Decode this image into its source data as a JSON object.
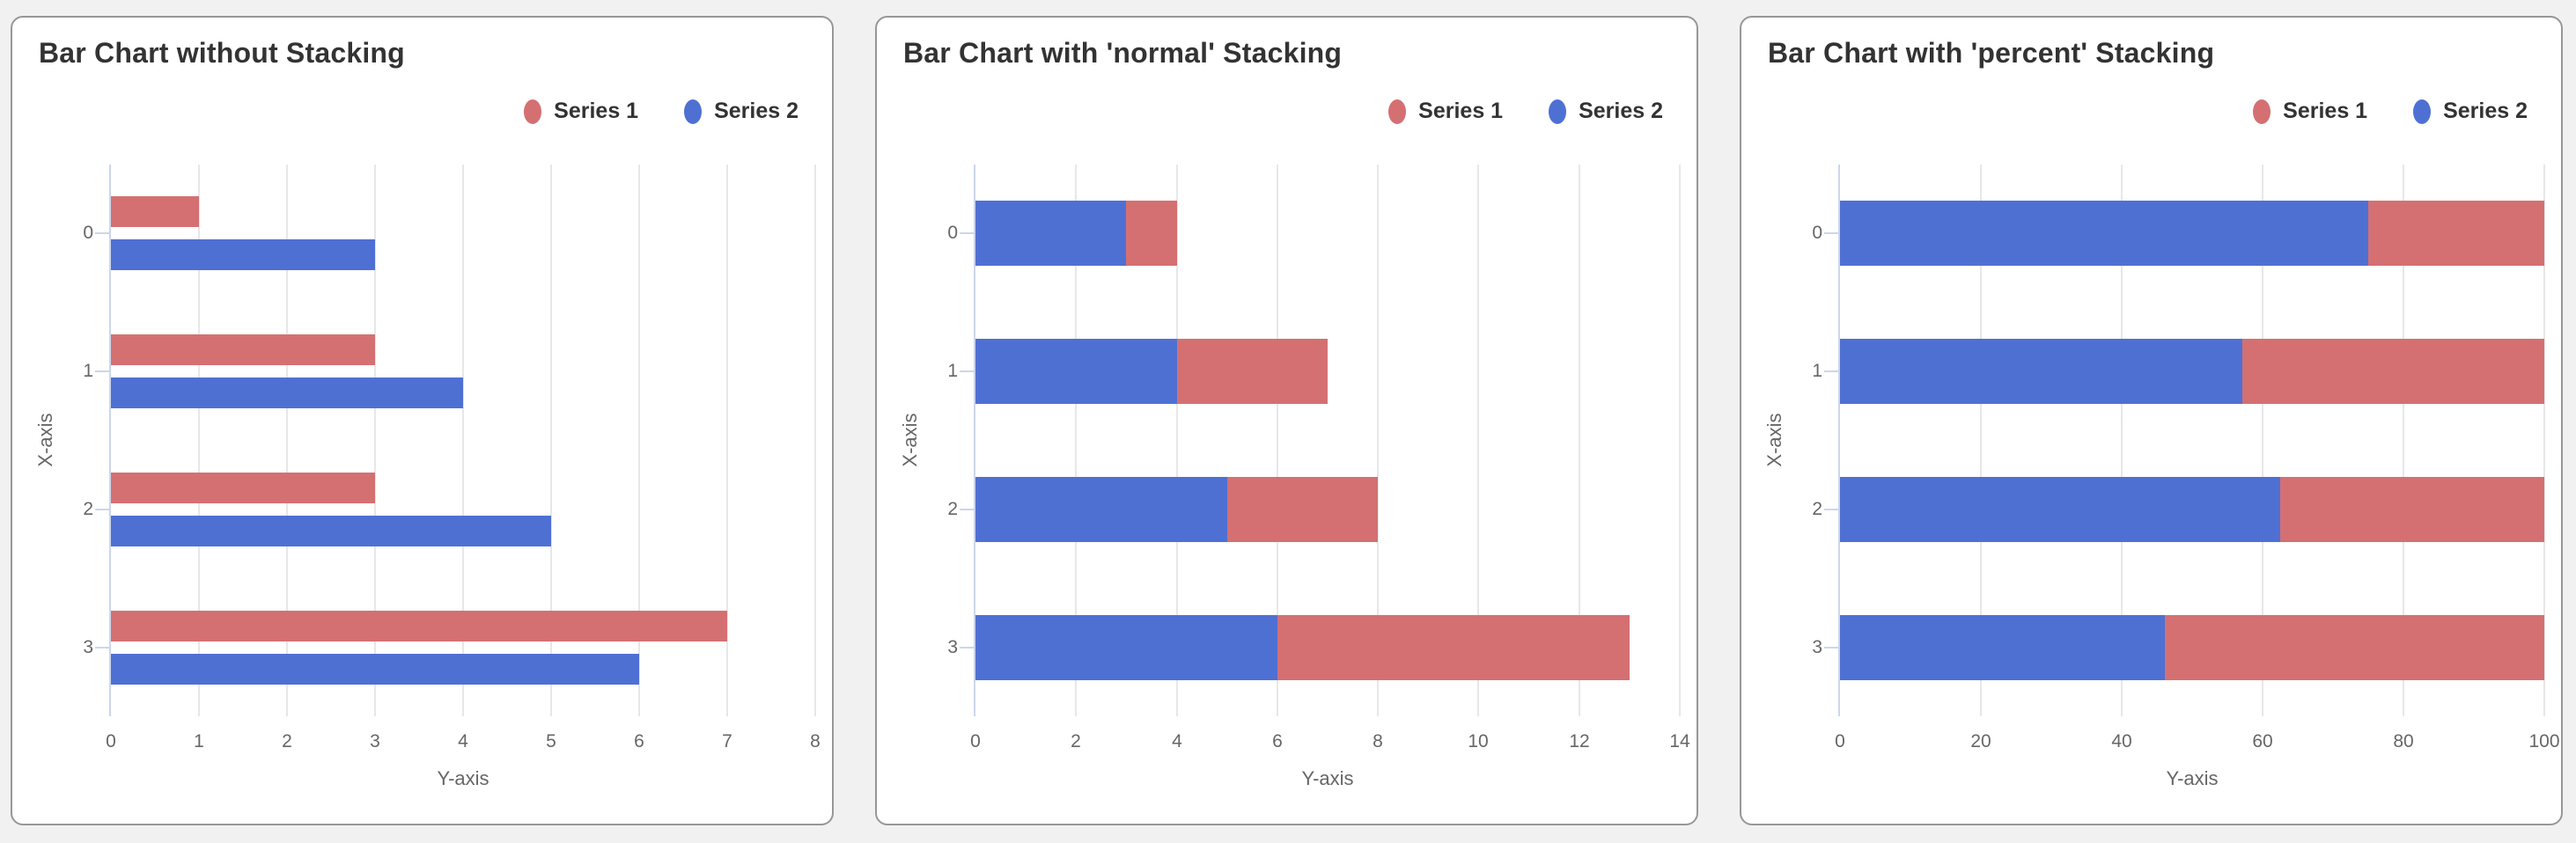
{
  "page": {
    "background_color": "#f1f1f2",
    "card_background": "#ffffff",
    "card_border_color": "#979797"
  },
  "colors": {
    "series1": "#d47072",
    "series2": "#4f70d3",
    "axis_line": "#ccd6eb",
    "gridline": "#e7e7e8",
    "title_text": "#333333",
    "tick_text": "#666666"
  },
  "chart_data": [
    {
      "type": "bar",
      "title": "Bar Chart without Stacking",
      "stacking": "none",
      "orientation": "horizontal",
      "categories": [
        "0",
        "1",
        "2",
        "3"
      ],
      "series": [
        {
          "name": "Series 1",
          "color": "#d47072",
          "values": [
            1,
            3,
            3,
            7
          ]
        },
        {
          "name": "Series 2",
          "color": "#4f70d3",
          "values": [
            3,
            4,
            5,
            6
          ]
        }
      ],
      "xlabel": "X-axis",
      "ylabel": "Y-axis",
      "value_ticks": [
        0,
        1,
        2,
        3,
        4,
        5,
        6,
        7,
        8
      ],
      "value_max": 8,
      "grid": true,
      "legend_position": "top-right"
    },
    {
      "type": "bar",
      "title": "Bar Chart with 'normal' Stacking",
      "stacking": "normal",
      "orientation": "horizontal",
      "categories": [
        "0",
        "1",
        "2",
        "3"
      ],
      "series": [
        {
          "name": "Series 1",
          "color": "#d47072",
          "values": [
            1,
            3,
            3,
            7
          ]
        },
        {
          "name": "Series 2",
          "color": "#4f70d3",
          "values": [
            3,
            4,
            5,
            6
          ]
        }
      ],
      "stack_totals": [
        4,
        7,
        8,
        13
      ],
      "xlabel": "X-axis",
      "ylabel": "Y-axis",
      "value_ticks": [
        0,
        2,
        4,
        6,
        8,
        10,
        12,
        14
      ],
      "value_max": 14,
      "grid": true,
      "legend_position": "top-right"
    },
    {
      "type": "bar",
      "title": "Bar Chart with 'percent' Stacking",
      "stacking": "percent",
      "orientation": "horizontal",
      "categories": [
        "0",
        "1",
        "2",
        "3"
      ],
      "series": [
        {
          "name": "Series 1",
          "color": "#d47072",
          "values": [
            1,
            3,
            3,
            7
          ]
        },
        {
          "name": "Series 2",
          "color": "#4f70d3",
          "values": [
            3,
            4,
            5,
            6
          ]
        }
      ],
      "series2_percent": [
        75,
        57.1,
        62.5,
        46.2
      ],
      "xlabel": "X-axis",
      "ylabel": "Y-axis",
      "value_ticks": [
        0,
        20,
        40,
        60,
        80,
        100
      ],
      "value_max": 100,
      "grid": true,
      "legend_position": "top-right"
    }
  ]
}
